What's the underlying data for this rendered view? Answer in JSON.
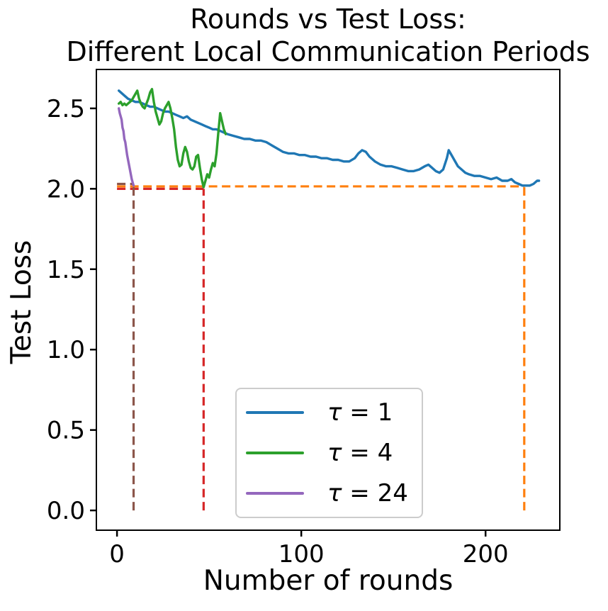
{
  "title": {
    "line1": "Rounds vs Test Loss:",
    "line2": "Different Local Communication Periods"
  },
  "legend": {
    "items": [
      {
        "symbol": "τ",
        "rest": " = 1"
      },
      {
        "symbol": "τ",
        "rest": " = 4"
      },
      {
        "symbol": "τ",
        "rest": " = 24"
      }
    ]
  },
  "chart_data": {
    "type": "line",
    "title": "Rounds vs Test Loss:\nDifferent Local Communication Periods",
    "xlabel": "Number of rounds",
    "ylabel": "Test Loss",
    "xlim": [
      -11.2,
      240.3
    ],
    "ylim": [
      -0.123,
      2.742
    ],
    "xticks": [
      0,
      100,
      200
    ],
    "xtick_labels": [
      "0",
      "100",
      "200"
    ],
    "yticks": [
      0.0,
      0.5,
      1.0,
      1.5,
      2.0,
      2.5
    ],
    "ytick_labels": [
      "0.0",
      "0.5",
      "1.0",
      "1.5",
      "2.0",
      "2.5"
    ],
    "grid": false,
    "background": "#ffffff",
    "axes_color": "#000000",
    "legend_position": "lower center",
    "series": [
      {
        "name": "τ = 1",
        "color": "#1f77b4",
        "points": [
          [
            1,
            2.61
          ],
          [
            2,
            2.6
          ],
          [
            4,
            2.58
          ],
          [
            6,
            2.56
          ],
          [
            8,
            2.55
          ],
          [
            10,
            2.54
          ],
          [
            12,
            2.54
          ],
          [
            14,
            2.53
          ],
          [
            16,
            2.52
          ],
          [
            18,
            2.51
          ],
          [
            20,
            2.51
          ],
          [
            22,
            2.5
          ],
          [
            24,
            2.49
          ],
          [
            26,
            2.48
          ],
          [
            28,
            2.48
          ],
          [
            30,
            2.47
          ],
          [
            32,
            2.46
          ],
          [
            34,
            2.45
          ],
          [
            36,
            2.44
          ],
          [
            38,
            2.45
          ],
          [
            40,
            2.43
          ],
          [
            42,
            2.42
          ],
          [
            44,
            2.41
          ],
          [
            46,
            2.4
          ],
          [
            48,
            2.39
          ],
          [
            50,
            2.38
          ],
          [
            52,
            2.37
          ],
          [
            54,
            2.37
          ],
          [
            56,
            2.36
          ],
          [
            58,
            2.35
          ],
          [
            60,
            2.34
          ],
          [
            63,
            2.33
          ],
          [
            66,
            2.32
          ],
          [
            69,
            2.31
          ],
          [
            72,
            2.31
          ],
          [
            75,
            2.3
          ],
          [
            78,
            2.3
          ],
          [
            81,
            2.29
          ],
          [
            84,
            2.27
          ],
          [
            87,
            2.25
          ],
          [
            90,
            2.23
          ],
          [
            93,
            2.22
          ],
          [
            96,
            2.22
          ],
          [
            99,
            2.21
          ],
          [
            102,
            2.21
          ],
          [
            105,
            2.2
          ],
          [
            108,
            2.2
          ],
          [
            111,
            2.19
          ],
          [
            114,
            2.19
          ],
          [
            117,
            2.18
          ],
          [
            120,
            2.18
          ],
          [
            123,
            2.17
          ],
          [
            126,
            2.17
          ],
          [
            129,
            2.19
          ],
          [
            131,
            2.22
          ],
          [
            133,
            2.24
          ],
          [
            135,
            2.23
          ],
          [
            137,
            2.2
          ],
          [
            140,
            2.17
          ],
          [
            143,
            2.15
          ],
          [
            146,
            2.14
          ],
          [
            149,
            2.14
          ],
          [
            152,
            2.13
          ],
          [
            155,
            2.12
          ],
          [
            158,
            2.11
          ],
          [
            161,
            2.11
          ],
          [
            164,
            2.12
          ],
          [
            167,
            2.14
          ],
          [
            169,
            2.15
          ],
          [
            171,
            2.13
          ],
          [
            173,
            2.11
          ],
          [
            175,
            2.1
          ],
          [
            177,
            2.12
          ],
          [
            179,
            2.19
          ],
          [
            180,
            2.24
          ],
          [
            181,
            2.22
          ],
          [
            183,
            2.18
          ],
          [
            185,
            2.14
          ],
          [
            187,
            2.12
          ],
          [
            189,
            2.1
          ],
          [
            191,
            2.09
          ],
          [
            194,
            2.08
          ],
          [
            197,
            2.08
          ],
          [
            200,
            2.07
          ],
          [
            203,
            2.06
          ],
          [
            206,
            2.07
          ],
          [
            209,
            2.05
          ],
          [
            212,
            2.05
          ],
          [
            214,
            2.06
          ],
          [
            216,
            2.04
          ],
          [
            218,
            2.03
          ],
          [
            220,
            2.02
          ],
          [
            222,
            2.02
          ],
          [
            224,
            2.02
          ],
          [
            226,
            2.03
          ],
          [
            228,
            2.05
          ],
          [
            229,
            2.05
          ]
        ]
      },
      {
        "name": "τ = 4",
        "color": "#2ca02c",
        "points": [
          [
            1,
            2.53
          ],
          [
            2,
            2.54
          ],
          [
            3,
            2.52
          ],
          [
            4,
            2.53
          ],
          [
            5,
            2.52
          ],
          [
            6,
            2.53
          ],
          [
            7,
            2.54
          ],
          [
            8,
            2.55
          ],
          [
            9,
            2.57
          ],
          [
            10,
            2.59
          ],
          [
            11,
            2.61
          ],
          [
            12,
            2.56
          ],
          [
            13,
            2.53
          ],
          [
            14,
            2.51
          ],
          [
            15,
            2.5
          ],
          [
            16,
            2.53
          ],
          [
            17,
            2.56
          ],
          [
            18,
            2.6
          ],
          [
            19,
            2.62
          ],
          [
            20,
            2.54
          ],
          [
            21,
            2.48
          ],
          [
            22,
            2.44
          ],
          [
            23,
            2.4
          ],
          [
            24,
            2.42
          ],
          [
            25,
            2.47
          ],
          [
            26,
            2.5
          ],
          [
            27,
            2.52
          ],
          [
            28,
            2.54
          ],
          [
            29,
            2.5
          ],
          [
            30,
            2.44
          ],
          [
            31,
            2.37
          ],
          [
            32,
            2.26
          ],
          [
            33,
            2.18
          ],
          [
            34,
            2.14
          ],
          [
            35,
            2.15
          ],
          [
            36,
            2.22
          ],
          [
            37,
            2.26
          ],
          [
            38,
            2.23
          ],
          [
            39,
            2.17
          ],
          [
            40,
            2.13
          ],
          [
            41,
            2.12
          ],
          [
            42,
            2.14
          ],
          [
            43,
            2.2
          ],
          [
            44,
            2.21
          ],
          [
            45,
            2.13
          ],
          [
            46,
            2.06
          ],
          [
            47,
            2.01
          ],
          [
            48,
            2.05
          ],
          [
            49,
            2.09
          ],
          [
            50,
            2.07
          ],
          [
            51,
            2.12
          ],
          [
            52,
            2.16
          ],
          [
            53,
            2.14
          ],
          [
            54,
            2.22
          ],
          [
            55,
            2.35
          ],
          [
            56,
            2.47
          ],
          [
            57,
            2.42
          ],
          [
            58,
            2.37
          ],
          [
            59,
            2.34
          ]
        ]
      },
      {
        "name": "τ = 24",
        "color": "#9467bd",
        "points": [
          [
            1,
            2.5
          ],
          [
            1.5,
            2.47
          ],
          [
            2,
            2.45
          ],
          [
            2.5,
            2.43
          ],
          [
            3,
            2.38
          ],
          [
            3.5,
            2.36
          ],
          [
            4,
            2.31
          ],
          [
            4.5,
            2.29
          ],
          [
            5,
            2.25
          ],
          [
            5.5,
            2.21
          ],
          [
            6,
            2.18
          ],
          [
            6.5,
            2.15
          ],
          [
            7,
            2.12
          ],
          [
            7.5,
            2.09
          ],
          [
            8,
            2.06
          ],
          [
            8.5,
            2.04
          ],
          [
            9,
            2.02
          ]
        ]
      }
    ],
    "threshold_lines": [
      {
        "series": "τ = 1",
        "color": "#ff7f0e",
        "style": "dashed",
        "loss": 2.015,
        "rounds": 221
      },
      {
        "series": "τ = 4",
        "color": "#d62728",
        "style": "dashed",
        "loss": 2.0,
        "rounds": 47
      },
      {
        "series": "τ = 24",
        "color": "#8c564b",
        "style": "dashed",
        "loss": 2.03,
        "rounds": 9
      }
    ]
  }
}
